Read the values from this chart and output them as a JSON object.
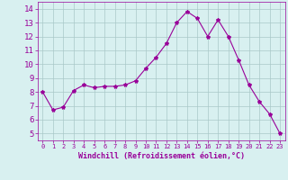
{
  "x": [
    0,
    1,
    2,
    3,
    4,
    5,
    6,
    7,
    8,
    9,
    10,
    11,
    12,
    13,
    14,
    15,
    16,
    17,
    18,
    19,
    20,
    21,
    22,
    23
  ],
  "y": [
    8.0,
    6.7,
    6.9,
    8.1,
    8.5,
    8.3,
    8.4,
    8.4,
    8.5,
    8.8,
    9.7,
    10.5,
    11.5,
    13.0,
    13.8,
    13.3,
    12.0,
    13.2,
    12.0,
    10.3,
    8.5,
    7.3,
    6.4,
    5.0
  ],
  "line_color": "#990099",
  "marker": "*",
  "marker_size": 3,
  "bg_color": "#d8f0f0",
  "grid_color": "#aac8c8",
  "xlabel": "Windchill (Refroidissement éolien,°C)",
  "xlabel_color": "#990099",
  "tick_color": "#990099",
  "yticks": [
    5,
    6,
    7,
    8,
    9,
    10,
    11,
    12,
    13,
    14
  ],
  "xticks": [
    0,
    1,
    2,
    3,
    4,
    5,
    6,
    7,
    8,
    9,
    10,
    11,
    12,
    13,
    14,
    15,
    16,
    17,
    18,
    19,
    20,
    21,
    22,
    23
  ],
  "ylim": [
    4.5,
    14.5
  ],
  "xlim": [
    -0.5,
    23.5
  ]
}
